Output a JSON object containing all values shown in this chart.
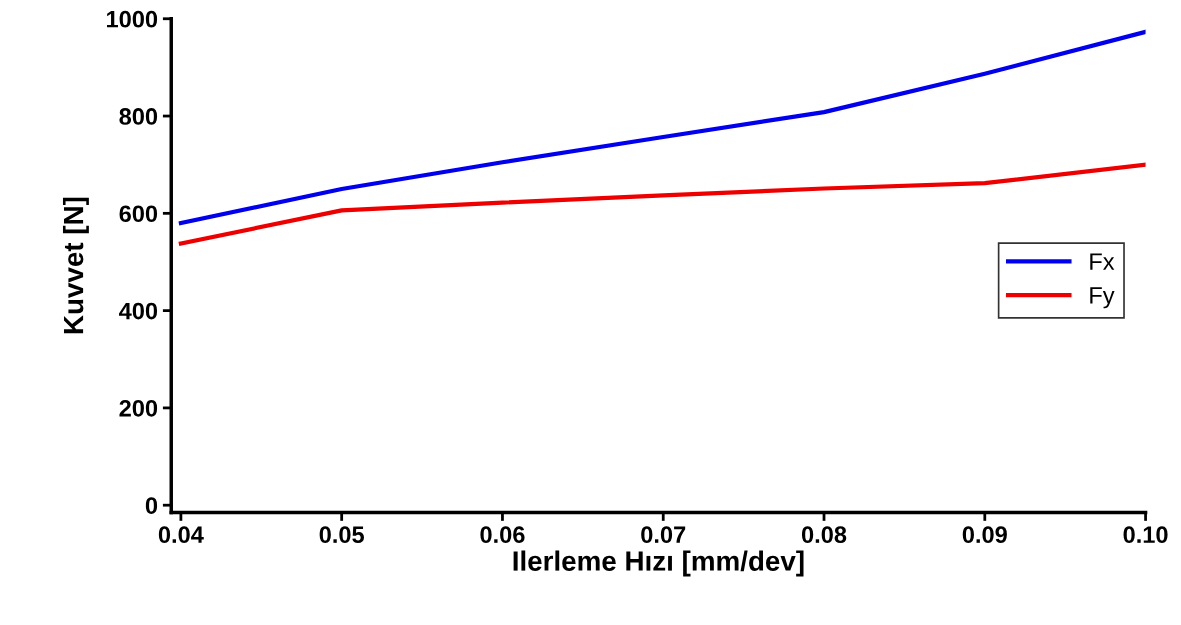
{
  "chart_data": {
    "type": "line",
    "xlabel": "Ilerleme Hızı [mm/dev]",
    "ylabel": "Kuvvet [N]",
    "x": [
      0.04,
      0.05,
      0.06,
      0.07,
      0.08,
      0.09,
      0.1
    ],
    "series": [
      {
        "name": "Fx",
        "color": "#0000ee",
        "values": [
          580,
          650,
          705,
          757,
          808,
          887,
          973
        ]
      },
      {
        "name": "Fy",
        "color": "#ee0000",
        "values": [
          538,
          606,
          622,
          637,
          651,
          662,
          700
        ]
      }
    ],
    "xlim": [
      0.0394,
      0.1
    ],
    "xticks": [
      {
        "value": 0.04,
        "label": "0.04"
      },
      {
        "value": 0.05,
        "label": "0.05"
      },
      {
        "value": 0.06,
        "label": "0.06"
      },
      {
        "value": 0.07,
        "label": "0.07"
      },
      {
        "value": 0.08,
        "label": "0.08"
      },
      {
        "value": 0.09,
        "label": "0.09"
      },
      {
        "value": 0.1,
        "label": "0.10"
      }
    ],
    "ylim": [
      -15,
      1000
    ],
    "yticks": [
      0,
      200,
      400,
      600,
      800,
      1000
    ],
    "grid": false,
    "legend": "right",
    "marker": "none",
    "line_style": "solid"
  }
}
